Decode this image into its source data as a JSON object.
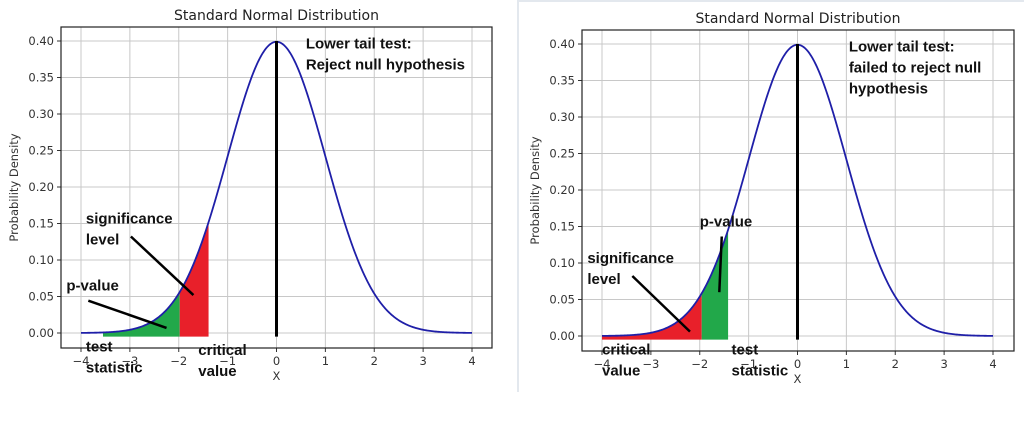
{
  "chart_data": [
    {
      "type": "area",
      "title": "Standard Normal Distribution",
      "xlabel": "X",
      "ylabel": "Probability Density",
      "xlim": [
        -4.4,
        4.4
      ],
      "ylim": [
        -0.02,
        0.42
      ],
      "xticks": [
        -4,
        -3,
        -2,
        -1,
        0,
        1,
        2,
        3,
        4
      ],
      "xtick_labels": [
        "−4",
        "−3",
        "−2",
        "−1",
        "0",
        "1",
        "2",
        "3",
        "4"
      ],
      "yticks": [
        0.0,
        0.05,
        0.1,
        0.15,
        0.2,
        0.25,
        0.3,
        0.35,
        0.4
      ],
      "ytick_labels": [
        "0.00",
        "0.05",
        "0.10",
        "0.15",
        "0.20",
        "0.25",
        "0.30",
        "0.35",
        "0.40"
      ],
      "grid": true,
      "curve": {
        "name": "standard normal pdf",
        "x_range": [
          -4,
          4
        ],
        "color": "#1f1fa8"
      },
      "mean_line": {
        "x": 0,
        "color": "#000000"
      },
      "shaded_regions": [
        {
          "name": "p-value",
          "from": -3.55,
          "to": -1.98,
          "color": "#22a84a"
        },
        {
          "name": "significance level",
          "from": -1.98,
          "to": -1.39,
          "color": "#e8202a"
        }
      ],
      "annotations": [
        {
          "text": [
            "Lower tail test:",
            "Reject null hypothesis"
          ],
          "x": 0.6,
          "y": 0.39
        },
        {
          "text": [
            "significance",
            "level"
          ],
          "x": -3.9,
          "y": 0.15,
          "arrow_to": [
            -1.7,
            0.052
          ]
        },
        {
          "text": [
            "p-value"
          ],
          "x": -4.3,
          "y": 0.058,
          "arrow_to": [
            -2.25,
            0.007
          ]
        },
        {
          "text": [
            "test",
            "statistic"
          ],
          "x": -3.9,
          "y": -0.025
        },
        {
          "text": [
            "critical",
            "value"
          ],
          "x": -1.6,
          "y": -0.03
        }
      ],
      "conclusion": "Reject null hypothesis"
    },
    {
      "type": "area",
      "title": "Standard Normal Distribution",
      "xlabel": "X",
      "ylabel": "Probability Density",
      "xlim": [
        -4.4,
        4.4
      ],
      "ylim": [
        -0.02,
        0.42
      ],
      "xticks": [
        -4,
        -3,
        -2,
        -1,
        0,
        1,
        2,
        3,
        4
      ],
      "xtick_labels": [
        "−4",
        "−3",
        "−2",
        "−1",
        "0",
        "1",
        "2",
        "3",
        "4"
      ],
      "yticks": [
        0.0,
        0.05,
        0.1,
        0.15,
        0.2,
        0.25,
        0.3,
        0.35,
        0.4
      ],
      "ytick_labels": [
        "0.00",
        "0.05",
        "0.10",
        "0.15",
        "0.20",
        "0.25",
        "0.30",
        "0.35",
        "0.40"
      ],
      "grid": true,
      "curve": {
        "name": "standard normal pdf",
        "x_range": [
          -4,
          4
        ],
        "color": "#1f1fa8"
      },
      "mean_line": {
        "x": 0,
        "color": "#000000"
      },
      "shaded_regions": [
        {
          "name": "significance level",
          "from": -4.0,
          "to": -1.96,
          "color": "#e8202a"
        },
        {
          "name": "p-value",
          "from": -1.96,
          "to": -1.42,
          "color": "#22a84a"
        }
      ],
      "annotations": [
        {
          "text": [
            "Lower tail test:",
            "failed to reject null",
            "hypothesis"
          ],
          "x": 1.05,
          "y": 0.39
        },
        {
          "text": [
            "p-value"
          ],
          "x": -2.0,
          "y": 0.15,
          "arrow_to": [
            -1.6,
            0.06
          ]
        },
        {
          "text": [
            "significance",
            "level"
          ],
          "x": -4.3,
          "y": 0.1,
          "arrow_to": [
            -2.2,
            0.006
          ]
        },
        {
          "text": [
            "critical",
            "value"
          ],
          "x": -4.0,
          "y": -0.025
        },
        {
          "text": [
            "test",
            "statistic"
          ],
          "x": -1.35,
          "y": -0.025
        }
      ],
      "conclusion": "failed to reject null hypothesis"
    }
  ]
}
